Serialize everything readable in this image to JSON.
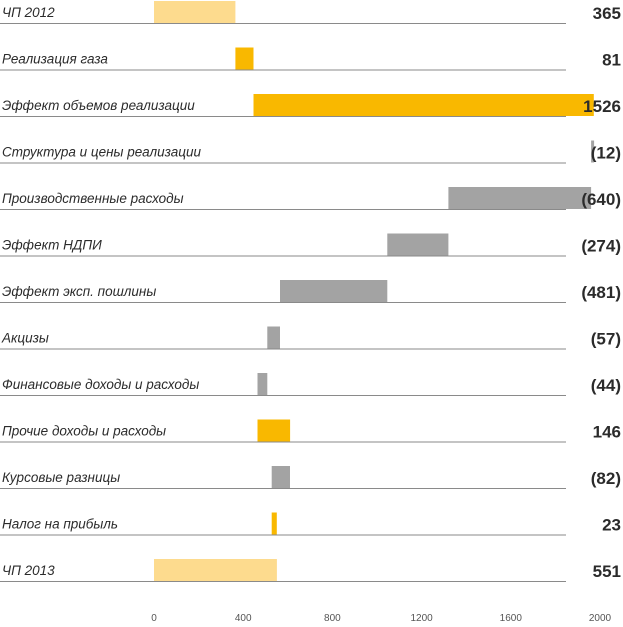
{
  "chart_data": {
    "type": "bar",
    "subtype": "waterfall",
    "orientation": "horizontal",
    "xlim": [
      0,
      2000
    ],
    "ticks": [
      0,
      400,
      800,
      1200,
      1600,
      2000
    ],
    "grid": false,
    "legend": "none",
    "colors": {
      "total": "#FDDB8E",
      "positive": "#F9B800",
      "negative": "#A3A3A3",
      "line": "#8A8A8A",
      "text": "#2B2B2B"
    },
    "rows": [
      {
        "category": "ЧП 2012",
        "kind": "total",
        "start": 0,
        "end": 365,
        "value_label": "365"
      },
      {
        "category": "Реализация газа",
        "kind": "positive",
        "start": 365,
        "end": 446,
        "value_label": "81"
      },
      {
        "category": "Эффект объемов реализации",
        "kind": "positive",
        "start": 446,
        "end": 1972,
        "value_label": "1526"
      },
      {
        "category": "Структура и цены реализации",
        "kind": "negative",
        "start": 1960,
        "end": 1972,
        "value_label": "(12)"
      },
      {
        "category": "Производственные расходы",
        "kind": "negative",
        "start": 1320,
        "end": 1960,
        "value_label": "(640)"
      },
      {
        "category": "Эффект НДПИ",
        "kind": "negative",
        "start": 1046,
        "end": 1320,
        "value_label": "(274)"
      },
      {
        "category": "Эффект эксп. пошлины",
        "kind": "negative",
        "start": 565,
        "end": 1046,
        "value_label": "(481)"
      },
      {
        "category": "Акцизы",
        "kind": "negative",
        "start": 508,
        "end": 565,
        "value_label": "(57)"
      },
      {
        "category": "Финансовые доходы и расходы",
        "kind": "negative",
        "start": 464,
        "end": 508,
        "value_label": "(44)"
      },
      {
        "category": "Прочие доходы и расходы",
        "kind": "positive",
        "start": 464,
        "end": 610,
        "value_label": "146"
      },
      {
        "category": "Курсовые разницы",
        "kind": "negative",
        "start": 528,
        "end": 610,
        "value_label": "(82)"
      },
      {
        "category": "Налог на прибыль",
        "kind": "positive",
        "start": 528,
        "end": 551,
        "value_label": "23"
      },
      {
        "category": "ЧП 2013",
        "kind": "total",
        "start": 0,
        "end": 551,
        "value_label": "551"
      }
    ]
  }
}
